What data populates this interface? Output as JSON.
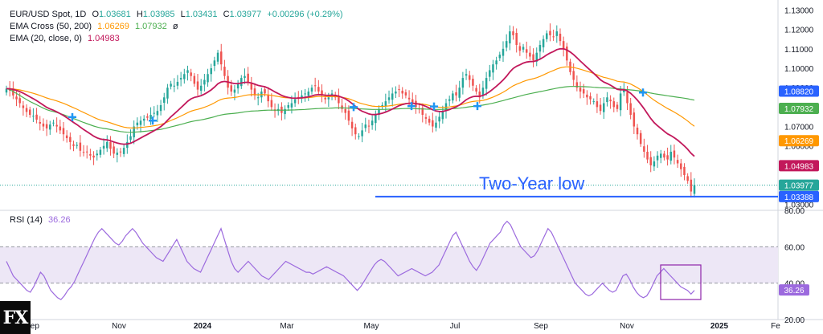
{
  "legend": {
    "line1": {
      "symbol": "EUR/USD Spot, 1D",
      "o_label": "O",
      "o": "1.03681",
      "h_label": "H",
      "h": "1.03985",
      "l_label": "L",
      "l": "1.03431",
      "c_label": "C",
      "c": "1.03977",
      "change": "+0.00296 (+0.29%)"
    },
    "line2": {
      "name": "EMA Cross (50, 200)",
      "v1": "1.06269",
      "v2": "1.07932",
      "extra": "ø"
    },
    "line3": {
      "name": "EMA (20, close, 0)",
      "v1": "1.04983"
    }
  },
  "rsi_label": {
    "name": "RSI (14)",
    "value": "36.26"
  },
  "annotation": "Two-Year low",
  "logo": "FX",
  "colors": {
    "bull": "#26a69a",
    "bear": "#ef5350",
    "ema20": "#c2185b",
    "ema50": "#ff9800",
    "ema200": "#4caf50",
    "cross": "#2196f3",
    "support": "#2962ff",
    "rsi": "#9c6ade",
    "rsi_band": "#ede7f6",
    "grid": "#d1d4dc"
  },
  "chart_data": [
    {
      "type": "candlestick",
      "price_axis": {
        "ticks": [
          "1.13000",
          "1.12000",
          "1.11000",
          "1.10000",
          "1.09000",
          "1.08000",
          "1.07000",
          "1.06000",
          "1.05000",
          "1.04000",
          "1.03000"
        ],
        "range": [
          1.0268,
          1.1335
        ]
      },
      "x_ticks": [
        "Sep",
        "Nov",
        "2024",
        "Mar",
        "May",
        "Jul",
        "Sep",
        "Nov",
        "2025",
        "Fe"
      ],
      "price_labels": [
        {
          "value": 1.0882,
          "text": "1.08820",
          "color": "#2962ff"
        },
        {
          "value": 1.07932,
          "text": "1.07932",
          "color": "#4caf50"
        },
        {
          "value": 1.06269,
          "text": "1.06269",
          "color": "#ff9800"
        },
        {
          "value": 1.04983,
          "text": "1.04983",
          "color": "#c2185b"
        },
        {
          "value": 1.03977,
          "text": "1.03977",
          "color": "#26a69a"
        },
        {
          "value": 1.03388,
          "text": "1.03388",
          "color": "#2962ff"
        }
      ],
      "support_level": 1.03388,
      "close_series": [
        1.0895,
        1.0885,
        1.086,
        1.084,
        1.082,
        1.0795,
        1.0775,
        1.076,
        1.0755,
        1.0735,
        1.0715,
        1.07,
        1.069,
        1.071,
        1.072,
        1.07,
        1.068,
        1.066,
        1.064,
        1.062,
        1.06,
        1.0605,
        1.0575,
        1.0565,
        1.057,
        1.055,
        1.054,
        1.056,
        1.058,
        1.06,
        1.062,
        1.0585,
        1.056,
        1.0565,
        1.057,
        1.059,
        1.062,
        1.065,
        1.07,
        1.072,
        1.073,
        1.074,
        1.0745,
        1.076,
        1.077,
        1.078,
        1.081,
        1.085,
        1.09,
        1.092,
        1.091,
        1.093,
        1.095,
        1.097,
        1.099,
        1.096,
        1.092,
        1.089,
        1.091,
        1.094,
        1.097,
        1.1,
        1.104,
        1.108,
        1.102,
        1.096,
        1.09,
        1.088,
        1.089,
        1.092,
        1.095,
        1.096,
        1.093,
        1.089,
        1.086,
        1.085,
        1.088,
        1.087,
        1.083,
        1.08,
        1.078,
        1.079,
        1.077,
        1.079,
        1.081,
        1.082,
        1.084,
        1.085,
        1.086,
        1.087,
        1.088,
        1.09,
        1.091,
        1.088,
        1.086,
        1.084,
        1.085,
        1.087,
        1.085,
        1.082,
        1.079,
        1.077,
        1.073,
        1.069,
        1.066,
        1.065,
        1.068,
        1.071,
        1.07,
        1.073,
        1.076,
        1.079,
        1.081,
        1.083,
        1.085,
        1.087,
        1.088,
        1.089,
        1.087,
        1.086,
        1.084,
        1.082,
        1.08,
        1.079,
        1.076,
        1.074,
        1.072,
        1.07,
        1.072,
        1.075,
        1.078,
        1.082,
        1.084,
        1.087,
        1.086,
        1.09,
        1.095,
        1.097,
        1.094,
        1.091,
        1.088,
        1.085,
        1.09,
        1.095,
        1.099,
        1.102,
        1.104,
        1.107,
        1.11,
        1.114,
        1.119,
        1.117,
        1.112,
        1.109,
        1.111,
        1.108,
        1.106,
        1.104,
        1.108,
        1.112,
        1.115,
        1.118,
        1.117,
        1.116,
        1.119,
        1.114,
        1.11,
        1.104,
        1.098,
        1.094,
        1.09,
        1.088,
        1.087,
        1.085,
        1.084,
        1.083,
        1.08,
        1.078,
        1.082,
        1.085,
        1.083,
        1.08,
        1.079,
        1.087,
        1.089,
        1.082,
        1.076,
        1.07,
        1.066,
        1.061,
        1.057,
        1.053,
        1.05,
        1.052,
        1.055,
        1.056,
        1.054,
        1.053,
        1.057,
        1.054,
        1.051,
        1.048,
        1.045,
        1.042,
        1.0365,
        1.0398
      ]
    },
    {
      "type": "line",
      "name": "RSI (14)",
      "ylim": [
        20,
        80
      ],
      "y_ticks": [
        "80.00",
        "60.00",
        "40.00",
        "20.00"
      ],
      "band": [
        40,
        60
      ],
      "last_value": 36.26,
      "values": [
        52,
        48,
        44,
        42,
        40,
        38,
        36,
        35,
        38,
        42,
        46,
        44,
        40,
        36,
        34,
        32,
        31,
        33,
        36,
        38,
        41,
        45,
        49,
        53,
        57,
        61,
        65,
        68,
        70,
        68,
        66,
        64,
        62,
        61,
        63,
        66,
        68,
        70,
        68,
        65,
        62,
        60,
        58,
        56,
        54,
        53,
        52,
        55,
        58,
        61,
        64,
        60,
        56,
        52,
        50,
        48,
        47,
        46,
        50,
        54,
        58,
        62,
        66,
        70,
        64,
        58,
        52,
        48,
        46,
        48,
        50,
        52,
        50,
        48,
        46,
        44,
        43,
        42,
        44,
        46,
        48,
        50,
        52,
        51,
        50,
        49,
        48,
        47,
        46,
        46,
        45,
        46,
        47,
        48,
        49,
        48,
        47,
        46,
        45,
        44,
        42,
        40,
        38,
        36,
        38,
        41,
        44,
        47,
        50,
        52,
        53,
        52,
        50,
        48,
        46,
        44,
        45,
        46,
        47,
        48,
        47,
        46,
        45,
        44,
        45,
        46,
        48,
        50,
        54,
        58,
        62,
        66,
        68,
        64,
        60,
        56,
        52,
        49,
        47,
        50,
        54,
        58,
        62,
        64,
        66,
        68,
        72,
        74,
        72,
        68,
        64,
        60,
        58,
        56,
        54,
        55,
        58,
        62,
        66,
        70,
        68,
        64,
        60,
        56,
        52,
        48,
        44,
        40,
        38,
        36,
        34,
        33,
        34,
        36,
        38,
        40,
        38,
        36,
        35,
        36,
        40,
        44,
        45,
        42,
        38,
        35,
        33,
        32,
        33,
        36,
        40,
        44,
        46,
        48,
        46,
        44,
        42,
        40,
        38,
        37,
        36,
        34,
        36
      ]
    }
  ]
}
